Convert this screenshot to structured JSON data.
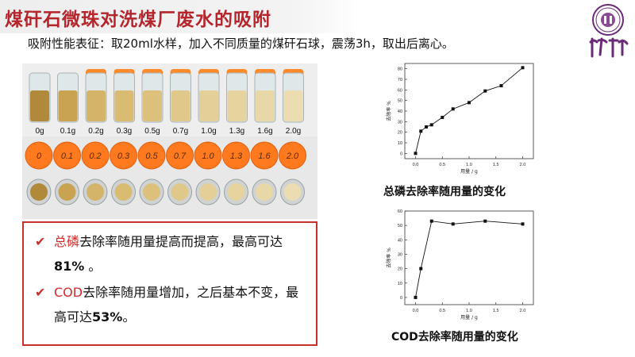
{
  "header": {
    "title": "煤矸石微珠对洗煤厂废水的吸附",
    "subtitle": "吸附性能表征：取20ml水样，加入不同质量的煤矸石球，震荡3h，取出后离心。"
  },
  "logo": {
    "text": "清華大學"
  },
  "photo": {
    "dose_labels": [
      "0g",
      "0.1g",
      "0.2g",
      "0.3g",
      "0.5g",
      "0.7g",
      "1.0g",
      "1.3g",
      "1.6g",
      "2.0g"
    ],
    "cap_labels": [
      "0",
      "0.1",
      "0.2",
      "0.3",
      "0.5",
      "0.7",
      "1.0",
      "1.3",
      "1.6",
      "2.0"
    ]
  },
  "notes": [
    {
      "highlight": "总磷",
      "text": "去除率随用量提高而提高，最高可达",
      "value": "81%",
      "tail": " 。"
    },
    {
      "highlight": "COD",
      "text": "去除率随用量增加，之后基本不变，最高可达",
      "value": "53%",
      "tail": "。"
    }
  ],
  "captions": {
    "tp": "总磷去除率随用量的变化",
    "cod": "COD去除率随用量的变化"
  },
  "chart_data": [
    {
      "type": "line",
      "title": "",
      "xlabel": "用量 / g",
      "ylabel": "去除率 %",
      "x": [
        0.0,
        0.1,
        0.2,
        0.3,
        0.5,
        0.7,
        1.0,
        1.3,
        1.6,
        2.0
      ],
      "y": [
        0,
        21,
        25,
        27,
        34,
        42,
        48,
        59,
        64,
        81
      ],
      "xlim": [
        -0.2,
        2.2
      ],
      "ylim": [
        -5,
        85
      ],
      "xticks": [
        0.0,
        0.5,
        1.0,
        1.5,
        2.0
      ],
      "xtick_labels": [
        "0.0",
        "0.5",
        "1.0",
        "1.5",
        "2.0"
      ],
      "yticks": [
        0,
        10,
        20,
        30,
        40,
        50,
        60,
        70,
        80
      ],
      "ytick_labels": [
        "0",
        "10",
        "20",
        "30",
        "40",
        "50",
        "60",
        "70",
        "80"
      ],
      "grid": false
    },
    {
      "type": "line",
      "title": "",
      "xlabel": "用量 / g",
      "ylabel": "去除率 %",
      "x": [
        0.0,
        0.1,
        0.3,
        0.7,
        1.3,
        2.0
      ],
      "y": [
        0,
        20,
        53,
        51,
        53,
        51
      ],
      "xlim": [
        -0.2,
        2.2
      ],
      "ylim": [
        -5,
        60
      ],
      "xticks": [
        0.0,
        0.5,
        1.0,
        1.5,
        2.0
      ],
      "xtick_labels": [
        "0.0",
        "0.5",
        "1.0",
        "1.5",
        "2.0"
      ],
      "yticks": [
        0,
        10,
        20,
        30,
        40,
        50,
        60
      ],
      "ytick_labels": [
        "0",
        "10",
        "20",
        "30",
        "40",
        "50",
        "60"
      ],
      "grid": false
    }
  ]
}
